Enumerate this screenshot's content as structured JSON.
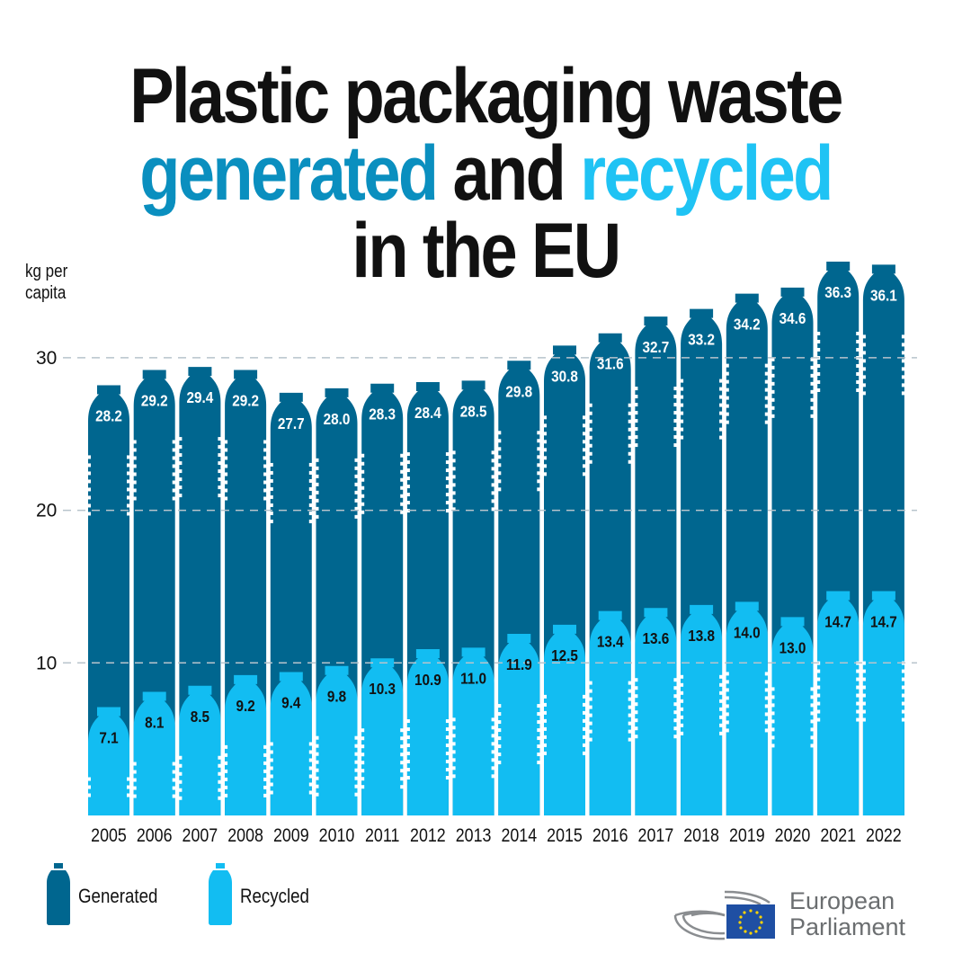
{
  "chart_data": {
    "type": "bar",
    "title_line1": "Plastic packaging waste",
    "title_generated": "generated",
    "title_and": "and",
    "title_recycled": "recycled",
    "title_line3": "in the EU",
    "ylabel_line1": "kg per",
    "ylabel_line2": "capita",
    "ylim": [
      0,
      35
    ],
    "yticks": [
      "10",
      "20",
      "30"
    ],
    "grid": true,
    "categories": [
      "2005",
      "2006",
      "2007",
      "2008",
      "2009",
      "2010",
      "2011",
      "2012",
      "2013",
      "2014",
      "2015",
      "2016",
      "2017",
      "2018",
      "2019",
      "2020",
      "2021",
      "2022"
    ],
    "series": [
      {
        "name": "Generated",
        "color": "#00668f",
        "values": [
          28.2,
          29.2,
          29.4,
          29.2,
          27.7,
          28.0,
          28.3,
          28.4,
          28.5,
          29.8,
          30.8,
          31.6,
          32.7,
          33.2,
          34.2,
          34.6,
          36.3,
          36.1
        ]
      },
      {
        "name": "Recycled",
        "color": "#12bdf2",
        "values": [
          7.1,
          8.1,
          8.5,
          9.2,
          9.4,
          9.8,
          10.3,
          10.9,
          11.0,
          11.9,
          12.5,
          13.4,
          13.6,
          13.8,
          14.0,
          13.0,
          14.7,
          14.7
        ]
      }
    ],
    "legend_placement": "bottom-left"
  },
  "logo": {
    "line1": "European",
    "line2": "Parliament"
  }
}
